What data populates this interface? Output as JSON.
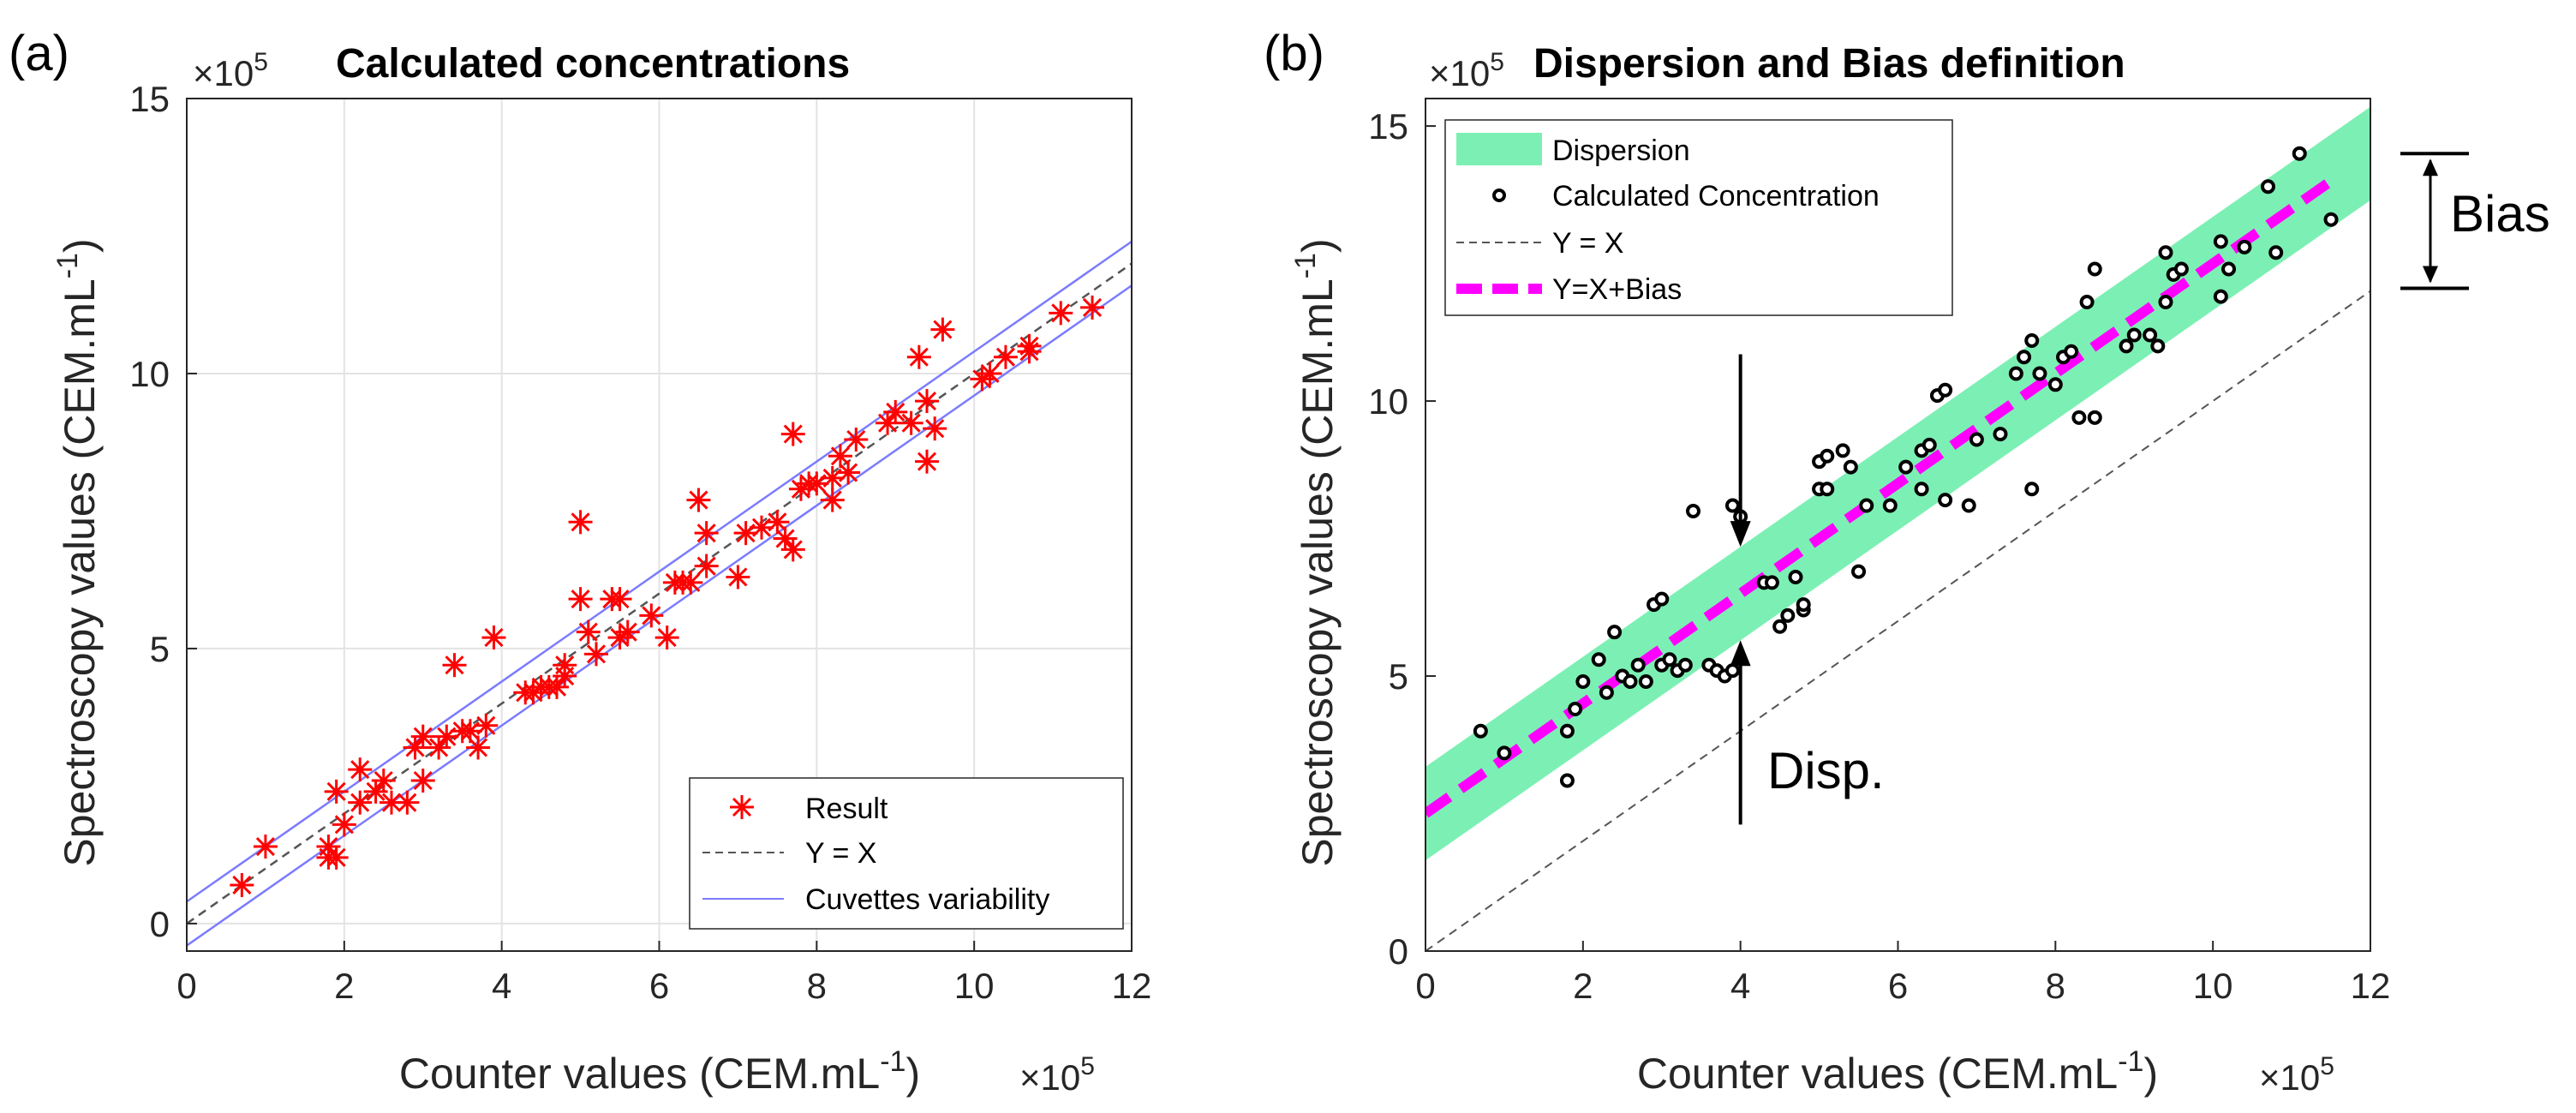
{
  "chart_data": [
    {
      "type": "scatter",
      "panel_label": "(a)",
      "title": "Calculated concentrations",
      "xlabel": "Counter values (CEM.mL",
      "xlabel_sup": "-1",
      "xlabel_end": ")",
      "ylabel": "Spectroscopy values (CEM.mL",
      "ylabel_sup": "-1",
      "ylabel_end": ")",
      "x_exponent": "×10",
      "x_exponent_sup": "5",
      "y_exponent": "×10",
      "y_exponent_sup": "5",
      "xlim": [
        0,
        12
      ],
      "ylim": [
        -0.5,
        15
      ],
      "xticks": [
        "0",
        "2",
        "4",
        "6",
        "8",
        "10",
        "12"
      ],
      "yticks": [
        "0",
        "5",
        "10",
        "15"
      ],
      "grid": true,
      "legend_position": "bottom-right",
      "series": [
        {
          "name": "Result",
          "kind": "marker",
          "color": "#ff0000",
          "points": [
            [
              0.7,
              0.7
            ],
            [
              1.0,
              1.4
            ],
            [
              1.8,
              1.2
            ],
            [
              1.8,
              1.4
            ],
            [
              1.9,
              1.2
            ],
            [
              1.9,
              2.4
            ],
            [
              2.0,
              1.8
            ],
            [
              2.2,
              2.2
            ],
            [
              2.2,
              2.8
            ],
            [
              2.4,
              2.4
            ],
            [
              2.5,
              2.6
            ],
            [
              2.6,
              2.2
            ],
            [
              2.8,
              2.2
            ],
            [
              2.9,
              3.2
            ],
            [
              3.0,
              2.6
            ],
            [
              3.0,
              3.4
            ],
            [
              3.2,
              3.2
            ],
            [
              3.3,
              3.4
            ],
            [
              3.4,
              4.7
            ],
            [
              3.5,
              3.5
            ],
            [
              3.6,
              3.5
            ],
            [
              3.7,
              3.2
            ],
            [
              3.8,
              3.6
            ],
            [
              3.9,
              5.2
            ],
            [
              4.3,
              4.2
            ],
            [
              4.4,
              4.2
            ],
            [
              4.5,
              4.3
            ],
            [
              4.6,
              4.3
            ],
            [
              4.7,
              4.3
            ],
            [
              4.8,
              4.5
            ],
            [
              4.8,
              4.7
            ],
            [
              5.0,
              7.3
            ],
            [
              5.0,
              5.9
            ],
            [
              5.1,
              5.3
            ],
            [
              5.2,
              4.9
            ],
            [
              5.4,
              5.9
            ],
            [
              5.5,
              5.9
            ],
            [
              5.5,
              5.2
            ],
            [
              5.6,
              5.3
            ],
            [
              5.9,
              5.6
            ],
            [
              6.1,
              5.2
            ],
            [
              6.2,
              6.2
            ],
            [
              6.3,
              6.2
            ],
            [
              6.4,
              6.2
            ],
            [
              6.5,
              7.7
            ],
            [
              6.6,
              7.1
            ],
            [
              6.6,
              6.5
            ],
            [
              7.0,
              6.3
            ],
            [
              7.1,
              7.1
            ],
            [
              7.3,
              7.2
            ],
            [
              7.5,
              7.3
            ],
            [
              7.6,
              7.0
            ],
            [
              7.7,
              6.8
            ],
            [
              7.7,
              8.9
            ],
            [
              7.8,
              7.9
            ],
            [
              7.9,
              8.0
            ],
            [
              8.0,
              8.0
            ],
            [
              8.2,
              7.7
            ],
            [
              8.2,
              8.1
            ],
            [
              8.3,
              8.5
            ],
            [
              8.4,
              8.2
            ],
            [
              8.5,
              8.8
            ],
            [
              8.9,
              9.1
            ],
            [
              9.0,
              9.3
            ],
            [
              9.2,
              9.1
            ],
            [
              9.4,
              9.5
            ],
            [
              9.3,
              10.3
            ],
            [
              9.4,
              8.4
            ],
            [
              9.5,
              9.0
            ],
            [
              9.6,
              10.8
            ],
            [
              10.1,
              9.9
            ],
            [
              10.2,
              10.0
            ],
            [
              10.4,
              10.3
            ],
            [
              10.7,
              10.4
            ],
            [
              10.7,
              10.5
            ],
            [
              11.1,
              11.1
            ],
            [
              11.5,
              11.2
            ]
          ]
        },
        {
          "name": "Y = X",
          "kind": "dashed-line",
          "color": "#555555",
          "x": [
            0,
            12
          ],
          "y": [
            0,
            12
          ]
        },
        {
          "name": "Cuvettes variability",
          "kind": "line-pair",
          "color": "#7b7bff",
          "offset": 0.4,
          "x": [
            0,
            12
          ]
        }
      ]
    },
    {
      "type": "scatter",
      "panel_label": "(b)",
      "title": "Dispersion and Bias definition",
      "xlabel": "Counter values (CEM.mL",
      "xlabel_sup": "-1",
      "xlabel_end": ")",
      "ylabel": "Spectroscopy values (CEM.mL",
      "ylabel_sup": "-1",
      "ylabel_end": ")",
      "x_exponent": "×10",
      "x_exponent_sup": "5",
      "y_exponent": "×10",
      "y_exponent_sup": "5",
      "xlim": [
        0,
        12
      ],
      "ylim": [
        0,
        15.5
      ],
      "xticks": [
        "0",
        "2",
        "4",
        "6",
        "8",
        "10",
        "12"
      ],
      "yticks": [
        "0",
        "5",
        "10",
        "15"
      ],
      "grid": false,
      "legend_position": "top-left",
      "bias": 2.5,
      "dispersion_halfwidth": 0.85,
      "series": [
        {
          "name": "Dispersion",
          "kind": "band",
          "color": "#7cf0b4"
        },
        {
          "name": "Calculated Concentration",
          "kind": "marker",
          "color": "#000000",
          "points": [
            [
              0.7,
              4.0
            ],
            [
              1.0,
              3.6
            ],
            [
              1.8,
              3.1
            ],
            [
              1.8,
              4.0
            ],
            [
              1.9,
              4.4
            ],
            [
              2.0,
              4.9
            ],
            [
              2.2,
              5.3
            ],
            [
              2.3,
              4.7
            ],
            [
              2.4,
              5.8
            ],
            [
              2.5,
              5.0
            ],
            [
              2.6,
              4.9
            ],
            [
              2.7,
              5.2
            ],
            [
              2.8,
              4.9
            ],
            [
              2.9,
              6.3
            ],
            [
              3.0,
              6.4
            ],
            [
              3.0,
              5.2
            ],
            [
              3.1,
              5.3
            ],
            [
              3.2,
              5.1
            ],
            [
              3.3,
              5.2
            ],
            [
              3.4,
              8.0
            ],
            [
              3.6,
              5.2
            ],
            [
              3.7,
              5.1
            ],
            [
              3.8,
              5.0
            ],
            [
              3.9,
              5.1
            ],
            [
              3.9,
              8.1
            ],
            [
              4.0,
              7.9
            ],
            [
              4.3,
              6.7
            ],
            [
              4.4,
              6.7
            ],
            [
              4.5,
              5.9
            ],
            [
              4.6,
              6.1
            ],
            [
              4.7,
              6.8
            ],
            [
              4.8,
              6.2
            ],
            [
              4.8,
              6.3
            ],
            [
              5.0,
              8.4
            ],
            [
              5.0,
              8.9
            ],
            [
              5.1,
              8.4
            ],
            [
              5.1,
              9.0
            ],
            [
              5.3,
              9.1
            ],
            [
              5.4,
              8.8
            ],
            [
              5.5,
              6.9
            ],
            [
              5.6,
              8.1
            ],
            [
              5.9,
              8.1
            ],
            [
              6.1,
              8.8
            ],
            [
              6.3,
              9.1
            ],
            [
              6.3,
              8.4
            ],
            [
              6.4,
              9.2
            ],
            [
              6.5,
              10.1
            ],
            [
              6.6,
              10.2
            ],
            [
              6.6,
              8.2
            ],
            [
              6.9,
              8.1
            ],
            [
              7.0,
              9.3
            ],
            [
              7.3,
              9.4
            ],
            [
              7.5,
              10.5
            ],
            [
              7.6,
              10.8
            ],
            [
              7.7,
              8.4
            ],
            [
              7.7,
              11.1
            ],
            [
              7.8,
              10.5
            ],
            [
              8.0,
              10.3
            ],
            [
              8.1,
              10.8
            ],
            [
              8.2,
              10.9
            ],
            [
              8.3,
              9.7
            ],
            [
              8.4,
              11.8
            ],
            [
              8.5,
              9.7
            ],
            [
              8.5,
              12.4
            ],
            [
              8.9,
              11.0
            ],
            [
              9.0,
              11.2
            ],
            [
              9.2,
              11.2
            ],
            [
              9.3,
              11.0
            ],
            [
              9.4,
              12.7
            ],
            [
              9.4,
              11.8
            ],
            [
              9.5,
              12.3
            ],
            [
              9.6,
              12.4
            ],
            [
              10.1,
              11.9
            ],
            [
              10.1,
              12.9
            ],
            [
              10.2,
              12.4
            ],
            [
              10.4,
              12.8
            ],
            [
              10.7,
              13.9
            ],
            [
              10.8,
              12.7
            ],
            [
              11.1,
              14.5
            ],
            [
              11.5,
              13.3
            ]
          ]
        },
        {
          "name": "Y = X",
          "kind": "dashed-line",
          "color": "#555555",
          "x": [
            0,
            12
          ],
          "y": [
            0,
            12
          ]
        },
        {
          "name": "Y=X+Bias",
          "kind": "thick-dashed-line",
          "color": "#ff00ff",
          "x": [
            0,
            11.5
          ],
          "y": [
            2.5,
            14.0
          ]
        }
      ],
      "annotations": {
        "bias_label": "Bias",
        "disp_label": "Disp.",
        "disp_at_x": 4.0
      }
    }
  ]
}
